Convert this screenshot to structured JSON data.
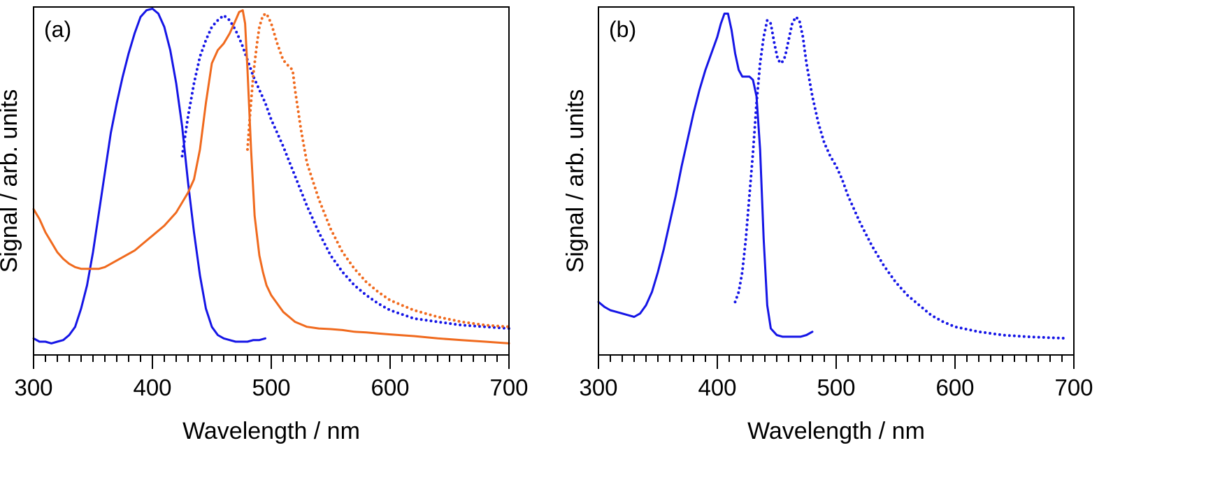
{
  "chart_data": [
    {
      "type": "line",
      "panel_label": "(a)",
      "xlabel": "Wavelength / nm",
      "ylabel": "Signal / arb. units",
      "xlim": [
        300,
        700
      ],
      "ylim": [
        0,
        1.05
      ],
      "xticks": [
        300,
        400,
        500,
        600,
        700
      ],
      "xtick_labels": [
        "300",
        "400",
        "500",
        "600",
        "700"
      ],
      "minor_tick_step": 10,
      "y_tick_labels": false,
      "grid": false,
      "legend": "none",
      "series": [
        {
          "color": "#1515e6",
          "style": "solid",
          "x": [
            300,
            305,
            310,
            315,
            320,
            325,
            330,
            335,
            340,
            345,
            350,
            355,
            360,
            365,
            370,
            375,
            380,
            385,
            390,
            395,
            400,
            405,
            410,
            415,
            420,
            425,
            430,
            435,
            440,
            445,
            450,
            455,
            460,
            465,
            470,
            475,
            480,
            485,
            490,
            495
          ],
          "y": [
            0.05,
            0.04,
            0.04,
            0.035,
            0.04,
            0.045,
            0.06,
            0.085,
            0.14,
            0.21,
            0.31,
            0.43,
            0.55,
            0.67,
            0.76,
            0.84,
            0.91,
            0.97,
            1.02,
            1.04,
            1.045,
            1.03,
            0.99,
            0.92,
            0.82,
            0.69,
            0.52,
            0.37,
            0.24,
            0.14,
            0.085,
            0.06,
            0.05,
            0.045,
            0.04,
            0.04,
            0.04,
            0.045,
            0.045,
            0.05
          ]
        },
        {
          "color": "#1515e6",
          "style": "dotted",
          "x": [
            425,
            430,
            435,
            440,
            445,
            450,
            455,
            460,
            465,
            470,
            475,
            480,
            485,
            490,
            495,
            500,
            510,
            520,
            530,
            540,
            550,
            560,
            570,
            580,
            590,
            600,
            620,
            640,
            660,
            680,
            700
          ],
          "y": [
            0.6,
            0.72,
            0.82,
            0.9,
            0.95,
            0.99,
            1.01,
            1.025,
            1.01,
            0.98,
            0.94,
            0.89,
            0.84,
            0.8,
            0.76,
            0.71,
            0.63,
            0.54,
            0.45,
            0.37,
            0.3,
            0.25,
            0.21,
            0.18,
            0.155,
            0.135,
            0.11,
            0.1,
            0.09,
            0.085,
            0.08
          ]
        },
        {
          "color": "#f06a1e",
          "style": "solid",
          "x": [
            300,
            305,
            310,
            315,
            320,
            325,
            330,
            335,
            340,
            345,
            350,
            355,
            360,
            365,
            370,
            375,
            380,
            385,
            390,
            395,
            400,
            410,
            420,
            430,
            435,
            440,
            445,
            450,
            455,
            460,
            465,
            470,
            473,
            476,
            478,
            480,
            483,
            486,
            490,
            493,
            496,
            500,
            510,
            520,
            530,
            540,
            550,
            560,
            570,
            580,
            590,
            600,
            620,
            640,
            660,
            680,
            700
          ],
          "y": [
            0.44,
            0.41,
            0.37,
            0.34,
            0.31,
            0.29,
            0.275,
            0.265,
            0.26,
            0.26,
            0.26,
            0.26,
            0.265,
            0.275,
            0.285,
            0.295,
            0.305,
            0.315,
            0.33,
            0.345,
            0.36,
            0.39,
            0.43,
            0.49,
            0.53,
            0.62,
            0.76,
            0.88,
            0.92,
            0.94,
            0.97,
            1.01,
            1.035,
            1.04,
            1.0,
            0.86,
            0.62,
            0.42,
            0.3,
            0.25,
            0.21,
            0.18,
            0.13,
            0.1,
            0.085,
            0.08,
            0.078,
            0.075,
            0.07,
            0.068,
            0.065,
            0.062,
            0.057,
            0.05,
            0.045,
            0.04,
            0.035
          ]
        },
        {
          "color": "#f06a1e",
          "style": "dotted",
          "x": [
            480,
            482,
            485,
            488,
            490,
            493,
            496,
            500,
            505,
            510,
            515,
            518,
            520,
            525,
            530,
            540,
            550,
            560,
            570,
            580,
            590,
            600,
            620,
            640,
            660,
            680,
            700
          ],
          "y": [
            0.62,
            0.72,
            0.85,
            0.94,
            0.99,
            1.025,
            1.03,
            1.0,
            0.94,
            0.89,
            0.87,
            0.86,
            0.8,
            0.68,
            0.58,
            0.47,
            0.38,
            0.31,
            0.26,
            0.22,
            0.19,
            0.165,
            0.135,
            0.115,
            0.1,
            0.09,
            0.085
          ]
        }
      ]
    },
    {
      "type": "line",
      "panel_label": "(b)",
      "xlabel": "Wavelength / nm",
      "ylabel": "Signal / arb. units",
      "xlim": [
        300,
        700
      ],
      "ylim": [
        0,
        1.05
      ],
      "xticks": [
        300,
        400,
        500,
        600,
        700
      ],
      "xtick_labels": [
        "300",
        "400",
        "500",
        "600",
        "700"
      ],
      "minor_tick_step": 10,
      "y_tick_labels": false,
      "grid": false,
      "legend": "none",
      "series": [
        {
          "color": "#1515e6",
          "style": "solid",
          "x": [
            300,
            305,
            310,
            315,
            320,
            325,
            330,
            335,
            340,
            345,
            350,
            355,
            360,
            365,
            370,
            375,
            380,
            385,
            390,
            395,
            400,
            403,
            406,
            409,
            412,
            415,
            418,
            421,
            424,
            427,
            430,
            433,
            436,
            439,
            442,
            445,
            450,
            455,
            460,
            465,
            470,
            475,
            480
          ],
          "y": [
            0.16,
            0.145,
            0.135,
            0.13,
            0.125,
            0.12,
            0.115,
            0.125,
            0.15,
            0.19,
            0.25,
            0.32,
            0.4,
            0.48,
            0.57,
            0.65,
            0.73,
            0.8,
            0.86,
            0.91,
            0.96,
            1.0,
            1.03,
            1.03,
            0.98,
            0.91,
            0.86,
            0.84,
            0.84,
            0.84,
            0.83,
            0.78,
            0.62,
            0.35,
            0.15,
            0.08,
            0.06,
            0.055,
            0.055,
            0.055,
            0.055,
            0.06,
            0.07
          ]
        },
        {
          "color": "#1515e6",
          "style": "dotted",
          "x": [
            415,
            418,
            421,
            424,
            427,
            430,
            433,
            436,
            439,
            442,
            445,
            448,
            451,
            454,
            457,
            460,
            463,
            466,
            469,
            472,
            475,
            480,
            485,
            490,
            495,
            500,
            505,
            510,
            520,
            530,
            540,
            550,
            560,
            570,
            580,
            590,
            600,
            620,
            640,
            660,
            680,
            695
          ],
          "y": [
            0.16,
            0.19,
            0.25,
            0.35,
            0.48,
            0.61,
            0.76,
            0.88,
            0.96,
            1.01,
            1.0,
            0.94,
            0.89,
            0.88,
            0.9,
            0.95,
            1.0,
            1.02,
            1.01,
            0.96,
            0.88,
            0.78,
            0.7,
            0.64,
            0.6,
            0.57,
            0.53,
            0.48,
            0.4,
            0.33,
            0.27,
            0.22,
            0.18,
            0.15,
            0.12,
            0.1,
            0.085,
            0.07,
            0.06,
            0.055,
            0.052,
            0.05
          ]
        }
      ]
    }
  ]
}
